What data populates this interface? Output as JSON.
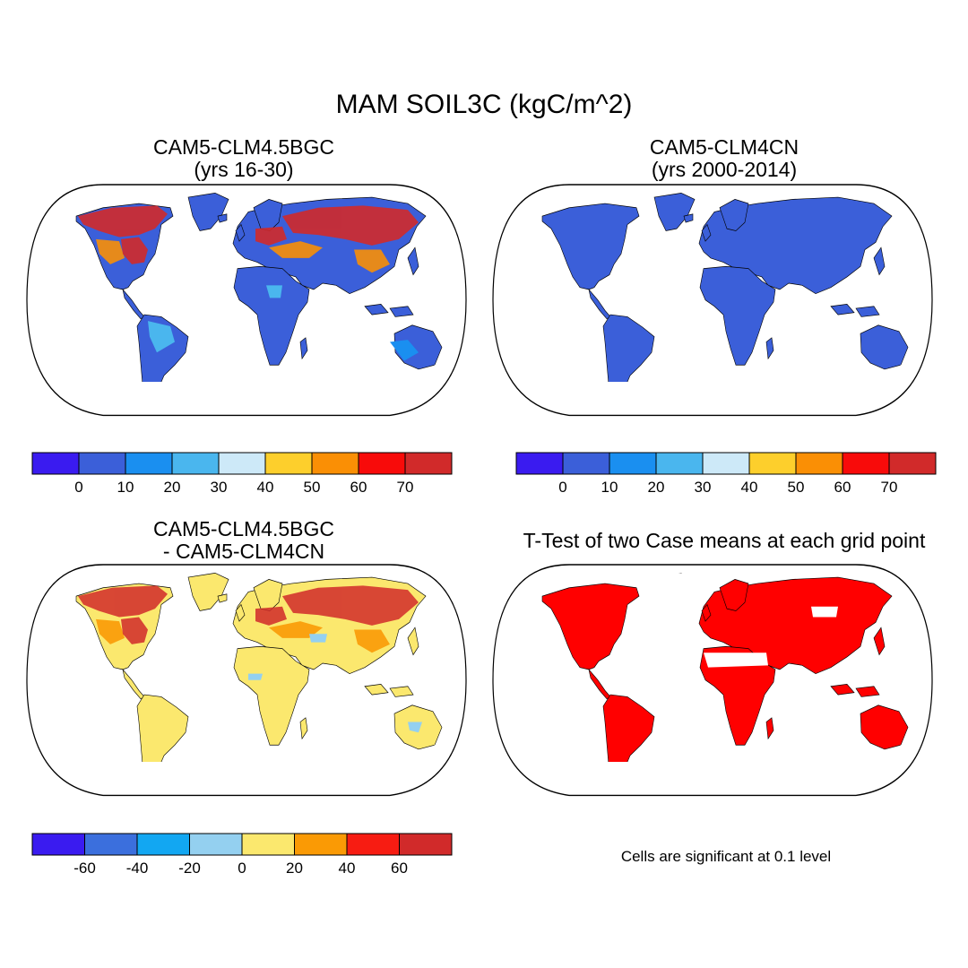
{
  "title": "MAM SOIL3C (kgC/m^2)",
  "panels": [
    {
      "id": "case1",
      "title_lines": [
        "CAM5-CLM4.5BGC",
        "(yrs 16-30)"
      ]
    },
    {
      "id": "case2",
      "title_lines": [
        "CAM5-CLM4CN",
        " (yrs 2000-2014)"
      ]
    },
    {
      "id": "diff",
      "title_lines": [
        "CAM5-CLM4.5BGC",
        "- CAM5-CLM4CN"
      ]
    },
    {
      "id": "ttest",
      "title_lines": [
        "T-Test of two Case means at each grid point"
      ]
    }
  ],
  "colorbars": {
    "levels": {
      "colors": [
        "#3a1bf0",
        "#3b5fd9",
        "#1a8ff0",
        "#4ab6ee",
        "#cde9f8",
        "#fdcf2c",
        "#fa8f05",
        "#f80b0a",
        "#d12a2a"
      ],
      "tick_labels": [
        "0",
        "10",
        "20",
        "30",
        "40",
        "50",
        "60",
        "70"
      ]
    },
    "difference": {
      "colors": [
        "#3a1bf0",
        "#3b6fdd",
        "#12a7f2",
        "#94d0f0",
        "#fbe86e",
        "#fa9a05",
        "#f71c12",
        "#d12a2a"
      ],
      "tick_labels": [
        "-60",
        "-40",
        "-20",
        "0",
        "20",
        "40",
        "60"
      ]
    }
  },
  "significance_note": "Cells are significant at 0.1 level",
  "colors": {
    "ocean": "#ffffff",
    "land_base_case1": "#3b5fd9",
    "land_base_case2": "#3b5fd9",
    "land_base_diff": "#fbe86e",
    "significant": "#ff0000",
    "coastline": "#000000"
  }
}
